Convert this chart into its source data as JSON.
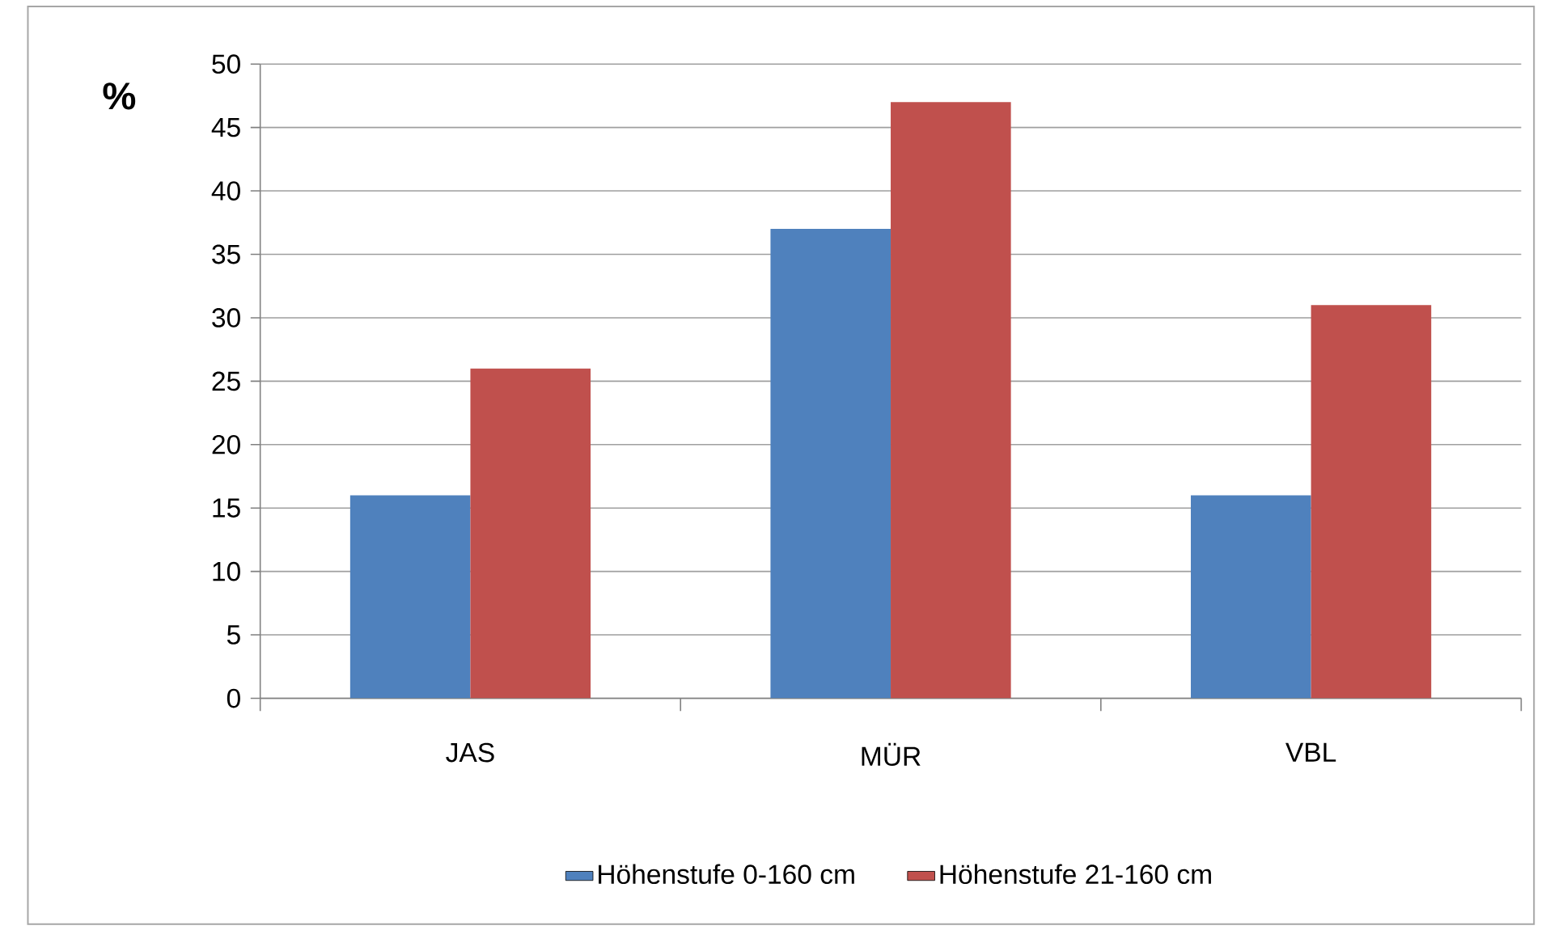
{
  "chart_data": {
    "type": "bar",
    "ylabel": "%",
    "categories": [
      "JAS",
      "MÜR",
      "VBL"
    ],
    "series": [
      {
        "name": "Höhenstufe 0-160 cm",
        "color": "#4f81bd",
        "values": [
          16,
          37,
          16
        ]
      },
      {
        "name": "Höhenstufe 21-160 cm",
        "color": "#c0504d",
        "values": [
          26,
          47,
          31
        ]
      }
    ],
    "ylim": [
      0,
      50
    ],
    "yticks": [
      0,
      5,
      10,
      15,
      20,
      25,
      30,
      35,
      40,
      45,
      50
    ],
    "grid": "y",
    "legend": "bottom"
  }
}
